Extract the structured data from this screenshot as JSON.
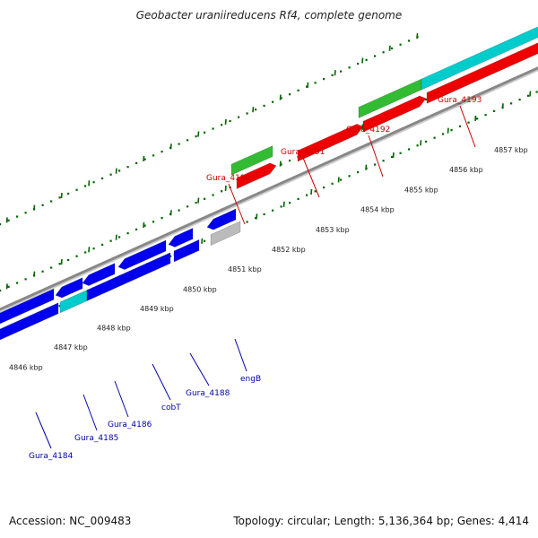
{
  "title": "Geobacter uraniireducens Rf4, complete genome",
  "footer": {
    "accession": "Accession: NC_009483",
    "summary": "Topology: circular; Length: 5,136,364 bp; Genes: 4,414"
  },
  "colors": {
    "red_label": "#cc0000",
    "blue_label": "#0000aa",
    "tick": "#006600",
    "gene_red": "#ee0000",
    "gene_green": "#33bb33",
    "gene_blue": "#0000ee",
    "gene_cyan": "#00cccc",
    "gene_gray": "#bbbbbb",
    "backbone": "#888888"
  },
  "scale_labels": [
    "4846 kbp",
    "4847 kbp",
    "4848 kbp",
    "4849 kbp",
    "4850 kbp",
    "4851 kbp",
    "4852 kbp",
    "4853 kbp",
    "4854 kbp",
    "4855 kbp",
    "4856 kbp",
    "4857 kbp"
  ],
  "upper_labels": [
    "Gura_4190",
    "Gura_4191",
    "Gura_4192",
    "Gura_4193"
  ],
  "lower_labels": [
    "Gura_4184",
    "Gura_4185",
    "Gura_4186",
    "cobT",
    "Gura_4188",
    "engB"
  ]
}
